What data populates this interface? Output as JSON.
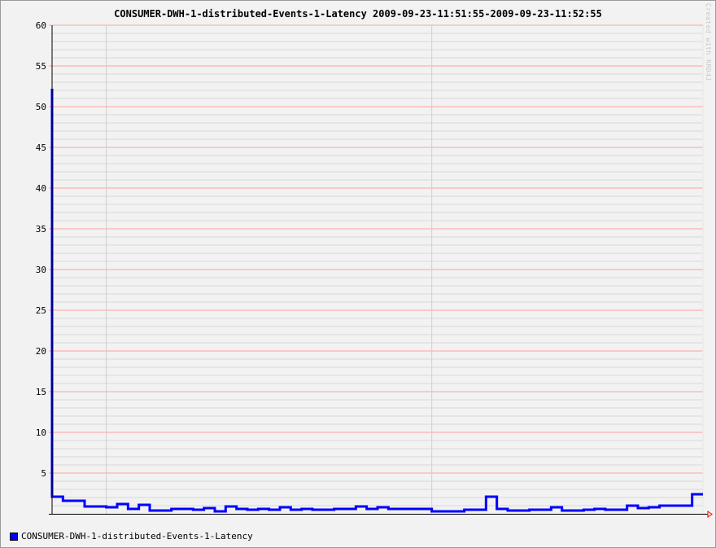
{
  "chart_data": {
    "type": "line",
    "title": "CONSUMER-DWH-1-distributed-Events-1-Latency 2009-09-23-11:51:55-2009-09-23-11:52:55",
    "xlabel": "",
    "ylabel": "",
    "ylim": [
      0,
      60
    ],
    "yticks": [
      5,
      10,
      15,
      20,
      25,
      30,
      35,
      40,
      45,
      50,
      55,
      60
    ],
    "y_minor_step": 1,
    "xlim": [
      0,
      60
    ],
    "x_major_ticks": [
      5,
      35
    ],
    "grid": true,
    "legend_placement": "bottom-left",
    "watermark": "Created with RRD4J",
    "colors": {
      "series": "#0000ff",
      "major_grid": "#ffa0a0",
      "minor_grid": "#d8d8d8",
      "axis": "#000000",
      "arrow": "#ff0000"
    },
    "series": [
      {
        "name": "CONSUMER-DWH-1-distributed-Events-1-Latency",
        "step": "stairs",
        "points": [
          [
            0,
            52.2
          ],
          [
            0,
            2.1
          ],
          [
            1,
            1.6
          ],
          [
            3,
            0.9
          ],
          [
            5,
            0.8
          ],
          [
            6,
            1.2
          ],
          [
            7,
            0.6
          ],
          [
            8,
            1.1
          ],
          [
            9,
            0.4
          ],
          [
            11,
            0.6
          ],
          [
            13,
            0.5
          ],
          [
            14,
            0.7
          ],
          [
            15,
            0.3
          ],
          [
            16,
            0.9
          ],
          [
            17,
            0.6
          ],
          [
            18,
            0.5
          ],
          [
            19,
            0.6
          ],
          [
            20,
            0.5
          ],
          [
            21,
            0.8
          ],
          [
            22,
            0.5
          ],
          [
            23,
            0.6
          ],
          [
            24,
            0.5
          ],
          [
            26,
            0.6
          ],
          [
            28,
            0.9
          ],
          [
            29,
            0.6
          ],
          [
            30,
            0.8
          ],
          [
            31,
            0.6
          ],
          [
            35,
            0.3
          ],
          [
            38,
            0.5
          ],
          [
            40,
            2.1
          ],
          [
            41,
            0.6
          ],
          [
            42,
            0.4
          ],
          [
            44,
            0.5
          ],
          [
            46,
            0.8
          ],
          [
            47,
            0.4
          ],
          [
            49,
            0.5
          ],
          [
            50,
            0.6
          ],
          [
            51,
            0.5
          ],
          [
            53,
            1.0
          ],
          [
            54,
            0.7
          ],
          [
            55,
            0.8
          ],
          [
            56,
            1.0
          ],
          [
            59,
            2.4
          ],
          [
            60,
            2.4
          ]
        ]
      }
    ]
  }
}
